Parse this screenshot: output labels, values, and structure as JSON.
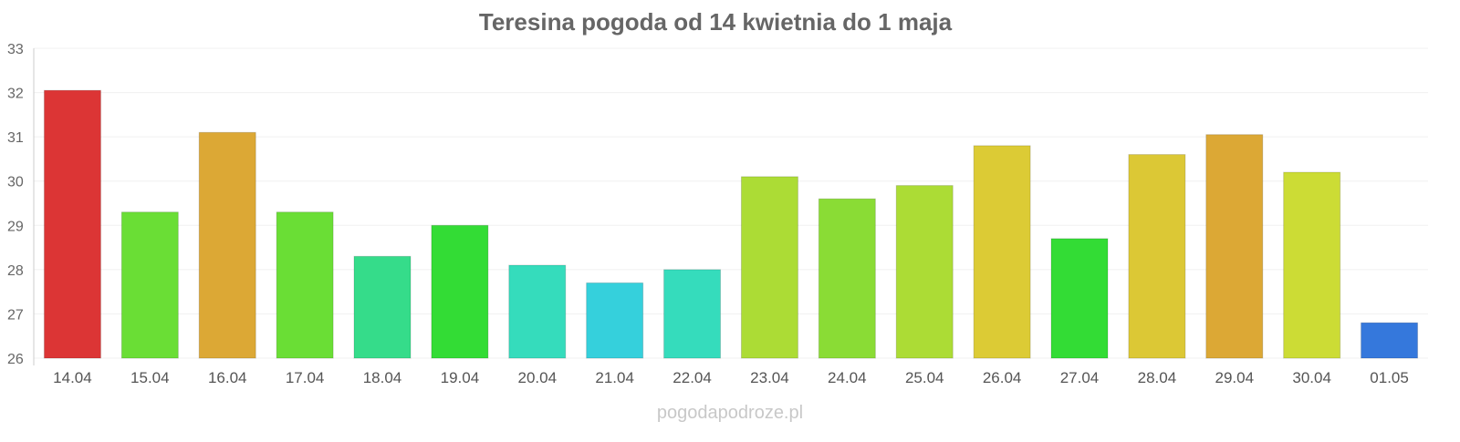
{
  "chart_data": {
    "type": "bar",
    "title": "Teresina pogoda od 14 kwietnia do 1 maja",
    "xlabel": "",
    "ylabel": "",
    "ylim": [
      26,
      33
    ],
    "yticks": [
      26,
      27,
      28,
      29,
      30,
      31,
      32,
      33
    ],
    "grid": true,
    "legend": "none",
    "categories": [
      "14.04",
      "15.04",
      "16.04",
      "17.04",
      "18.04",
      "19.04",
      "20.04",
      "21.04",
      "22.04",
      "23.04",
      "24.04",
      "25.04",
      "26.04",
      "27.04",
      "28.04",
      "29.04",
      "30.04",
      "01.05"
    ],
    "values": [
      32.05,
      29.3,
      31.1,
      29.3,
      28.3,
      29.0,
      28.1,
      27.7,
      28.0,
      30.1,
      29.6,
      29.9,
      30.8,
      28.7,
      30.6,
      31.05,
      30.2,
      26.8
    ],
    "colors": [
      "#dc3535",
      "#6ade35",
      "#dca835",
      "#6ade35",
      "#35dc8a",
      "#33dc35",
      "#35dcbc",
      "#35d0dc",
      "#35dcbc",
      "#acdc35",
      "#8adc35",
      "#acdc35",
      "#dccb35",
      "#33dc35",
      "#dcc835",
      "#dca835",
      "#ccdc35",
      "#3578dc"
    ]
  },
  "watermark": "pogodapodroze.pl"
}
